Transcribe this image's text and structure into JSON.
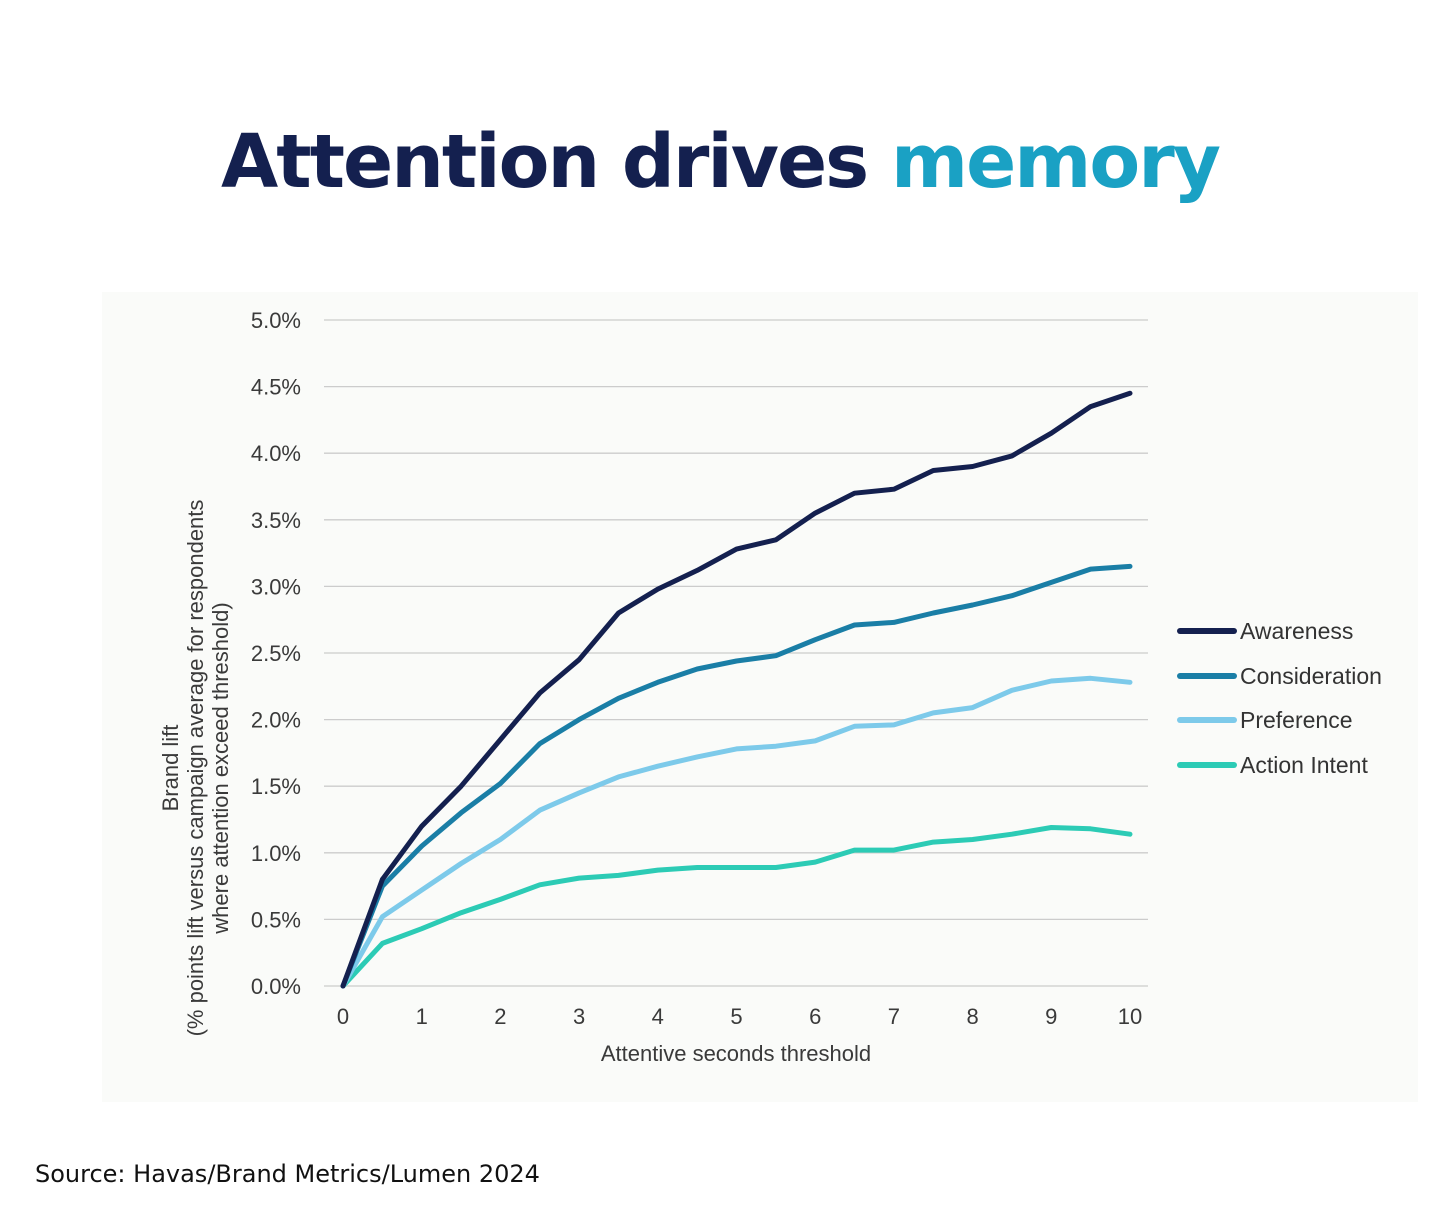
{
  "header": {
    "title_main": "Attention drives",
    "title_accent": "memory"
  },
  "footer": {
    "source": "Source: Havas/Brand Metrics/Lumen 2024"
  },
  "colors": {
    "title": "#14204f",
    "accent": "#1aa1c4",
    "grid": "#cccccc"
  },
  "chart_data": {
    "type": "line",
    "title": "",
    "xlabel": "Attentive seconds threshold",
    "ylabel_line1": "Brand lift",
    "ylabel_line2": "(% points lift versus campaign average for respondents",
    "ylabel_line3": "where attention exceed threshold)",
    "xlim": [
      0,
      10
    ],
    "ylim": [
      0,
      5
    ],
    "grid": true,
    "legend_position": "right",
    "x_ticks": [
      0,
      1,
      2,
      3,
      4,
      5,
      6,
      7,
      8,
      9,
      10
    ],
    "x_tick_labels": [
      "0",
      "1",
      "2",
      "3",
      "4",
      "5",
      "6",
      "7",
      "8",
      "9",
      "10"
    ],
    "y_ticks": [
      0,
      0.5,
      1,
      1.5,
      2,
      2.5,
      3,
      3.5,
      4,
      4.5,
      5
    ],
    "y_tick_labels": [
      "0.0%",
      "0.5%",
      "1.0%",
      "1.5%",
      "2.0%",
      "2.5%",
      "3.0%",
      "3.5%",
      "4.0%",
      "4.5%",
      "5.0%"
    ],
    "x": [
      0,
      0.5,
      1,
      1.5,
      2,
      2.5,
      3,
      3.5,
      4,
      4.5,
      5,
      5.5,
      6,
      6.5,
      7,
      7.5,
      8,
      8.5,
      9,
      9.5,
      10
    ],
    "series": [
      {
        "name": "Awareness",
        "color": "#14204f",
        "values": [
          0,
          0.8,
          1.2,
          1.5,
          1.85,
          2.2,
          2.45,
          2.8,
          2.98,
          3.12,
          3.28,
          3.35,
          3.55,
          3.7,
          3.73,
          3.87,
          3.9,
          3.98,
          4.15,
          4.35,
          4.45
        ]
      },
      {
        "name": "Consideration",
        "color": "#1a7ea6",
        "values": [
          0,
          0.75,
          1.05,
          1.3,
          1.52,
          1.82,
          2.0,
          2.16,
          2.28,
          2.38,
          2.44,
          2.48,
          2.6,
          2.71,
          2.73,
          2.8,
          2.86,
          2.93,
          3.03,
          3.13,
          3.15
        ]
      },
      {
        "name": "Preference",
        "color": "#7dcaea",
        "values": [
          0,
          0.52,
          0.72,
          0.92,
          1.1,
          1.32,
          1.45,
          1.57,
          1.65,
          1.72,
          1.78,
          1.8,
          1.84,
          1.95,
          1.96,
          2.05,
          2.09,
          2.22,
          2.29,
          2.31,
          2.28
        ]
      },
      {
        "name": "Action Intent",
        "color": "#2ccbb5",
        "values": [
          0,
          0.32,
          0.43,
          0.55,
          0.65,
          0.76,
          0.81,
          0.83,
          0.87,
          0.89,
          0.89,
          0.89,
          0.93,
          1.02,
          1.02,
          1.08,
          1.1,
          1.14,
          1.19,
          1.18,
          1.14
        ]
      }
    ]
  }
}
